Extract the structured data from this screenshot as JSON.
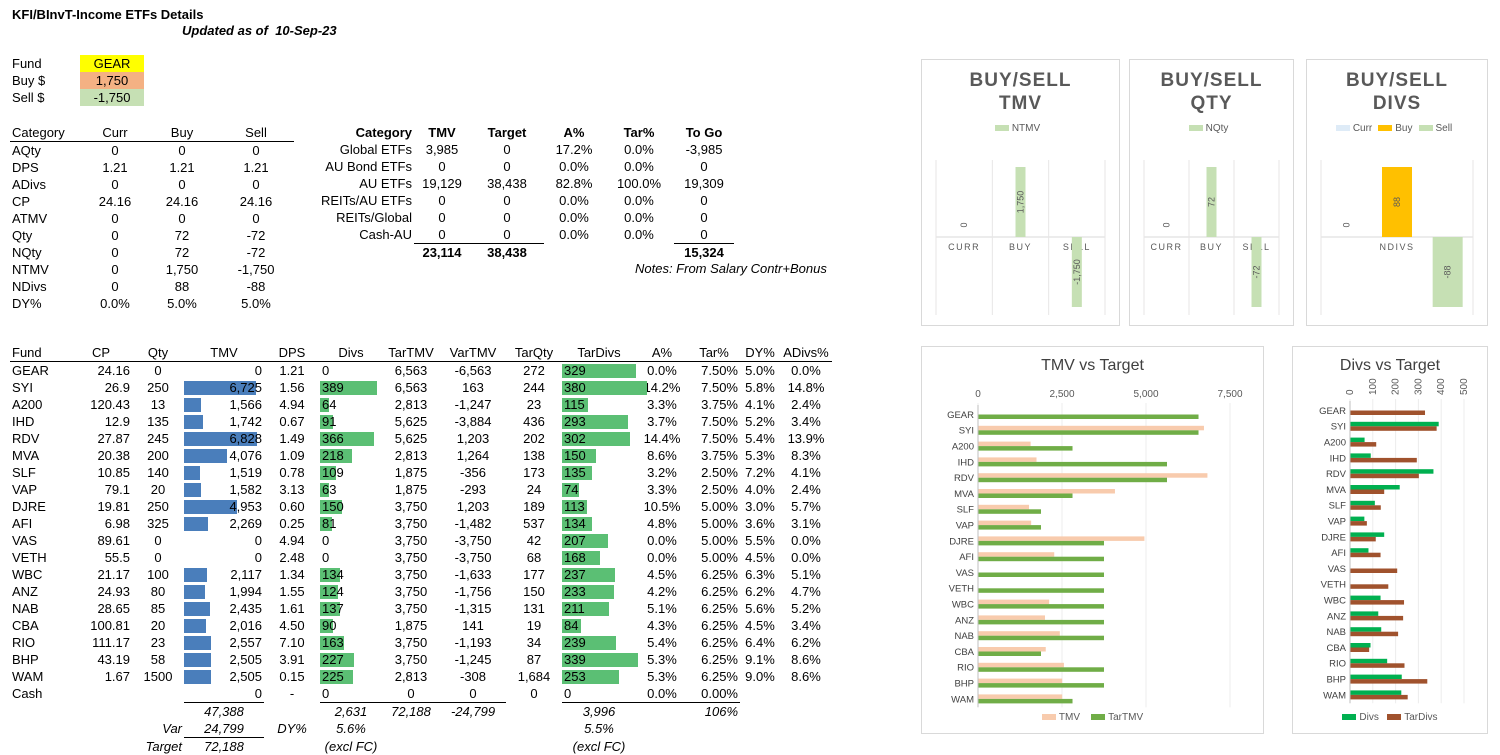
{
  "header": {
    "title": "KFI/BInvT-Income ETFs Details",
    "updated_label": "Updated as of",
    "updated_date": "10-Sep-23"
  },
  "inputs": [
    {
      "label": "Fund",
      "value": "GEAR",
      "color": "#ffff00"
    },
    {
      "label": "Buy $",
      "value": "1,750",
      "color": "#f4b183"
    },
    {
      "label": "Sell $",
      "value": "-1,750",
      "color": "#c6e0b4"
    }
  ],
  "calc": {
    "headers": [
      "Category",
      "Curr",
      "Buy",
      "Sell"
    ],
    "rows": [
      [
        "AQty",
        "0",
        "0",
        "0"
      ],
      [
        "DPS",
        "1.21",
        "1.21",
        "1.21"
      ],
      [
        "ADivs",
        "0",
        "0",
        "0"
      ],
      [
        "CP",
        "24.16",
        "24.16",
        "24.16"
      ],
      [
        "ATMV",
        "0",
        "0",
        "0"
      ],
      [
        "Qty",
        "0",
        "72",
        "-72"
      ],
      [
        "NQty",
        "0",
        "72",
        "-72"
      ],
      [
        "NTMV",
        "0",
        "1,750",
        "-1,750"
      ],
      [
        "NDivs",
        "0",
        "88",
        "-88"
      ],
      [
        "DY%",
        "0.0%",
        "5.0%",
        "5.0%"
      ]
    ]
  },
  "category": {
    "headers": [
      "Category",
      "TMV",
      "Target",
      "A%",
      "Tar%",
      "To Go"
    ],
    "rows": [
      [
        "Global ETFs",
        "3,985",
        "0",
        "17.2%",
        "0.0%",
        "-3,985"
      ],
      [
        "AU Bond ETFs",
        "0",
        "0",
        "0.0%",
        "0.0%",
        "0"
      ],
      [
        "AU ETFs",
        "19,129",
        "38,438",
        "82.8%",
        "100.0%",
        "19,309"
      ],
      [
        "REITs/AU ETFs",
        "0",
        "0",
        "0.0%",
        "0.0%",
        "0"
      ],
      [
        "REITs/Global",
        "0",
        "0",
        "0.0%",
        "0.0%",
        "0"
      ],
      [
        "Cash-AU",
        "0",
        "0",
        "0.0%",
        "0.0%",
        "0"
      ]
    ],
    "totals": {
      "tmv": "23,114",
      "target": "38,438",
      "togo": "15,324"
    },
    "notes": "Notes:  From Salary Contr+Bonus"
  },
  "funds": {
    "headers": [
      "Fund",
      "CP",
      "Qty",
      "TMV",
      "DPS",
      "Divs",
      "TarTMV",
      "VarTMV",
      "TarQty",
      "TarDivs",
      "A%",
      "Tar%",
      "DY%",
      "ADivs%"
    ],
    "rows": [
      [
        "GEAR",
        "24.16",
        "0",
        "0",
        "1.21",
        "0",
        "6,563",
        "-6,563",
        "272",
        "329",
        "0.0%",
        "7.50%",
        "5.0%",
        "0.0%"
      ],
      [
        "SYI",
        "26.9",
        "250",
        "6,725",
        "1.56",
        "389",
        "6,563",
        "163",
        "244",
        "380",
        "14.2%",
        "7.50%",
        "5.8%",
        "14.8%"
      ],
      [
        "A200",
        "120.43",
        "13",
        "1,566",
        "4.94",
        "64",
        "2,813",
        "-1,247",
        "23",
        "115",
        "3.3%",
        "3.75%",
        "4.1%",
        "2.4%"
      ],
      [
        "IHD",
        "12.9",
        "135",
        "1,742",
        "0.67",
        "91",
        "5,625",
        "-3,884",
        "436",
        "293",
        "3.7%",
        "7.50%",
        "5.2%",
        "3.4%"
      ],
      [
        "RDV",
        "27.87",
        "245",
        "6,828",
        "1.49",
        "366",
        "5,625",
        "1,203",
        "202",
        "302",
        "14.4%",
        "7.50%",
        "5.4%",
        "13.9%"
      ],
      [
        "MVA",
        "20.38",
        "200",
        "4,076",
        "1.09",
        "218",
        "2,813",
        "1,264",
        "138",
        "150",
        "8.6%",
        "3.75%",
        "5.3%",
        "8.3%"
      ],
      [
        "SLF",
        "10.85",
        "140",
        "1,519",
        "0.78",
        "109",
        "1,875",
        "-356",
        "173",
        "135",
        "3.2%",
        "2.50%",
        "7.2%",
        "4.1%"
      ],
      [
        "VAP",
        "79.1",
        "20",
        "1,582",
        "3.13",
        "63",
        "1,875",
        "-293",
        "24",
        "74",
        "3.3%",
        "2.50%",
        "4.0%",
        "2.4%"
      ],
      [
        "DJRE",
        "19.81",
        "250",
        "4,953",
        "0.60",
        "150",
        "3,750",
        "1,203",
        "189",
        "113",
        "10.5%",
        "5.00%",
        "3.0%",
        "5.7%"
      ],
      [
        "AFI",
        "6.98",
        "325",
        "2,269",
        "0.25",
        "81",
        "3,750",
        "-1,482",
        "537",
        "134",
        "4.8%",
        "5.00%",
        "3.6%",
        "3.1%"
      ],
      [
        "VAS",
        "89.61",
        "0",
        "0",
        "4.94",
        "0",
        "3,750",
        "-3,750",
        "42",
        "207",
        "0.0%",
        "5.00%",
        "5.5%",
        "0.0%"
      ],
      [
        "VETH",
        "55.5",
        "0",
        "0",
        "2.48",
        "0",
        "3,750",
        "-3,750",
        "68",
        "168",
        "0.0%",
        "5.00%",
        "4.5%",
        "0.0%"
      ],
      [
        "WBC",
        "21.17",
        "100",
        "2,117",
        "1.34",
        "134",
        "3,750",
        "-1,633",
        "177",
        "237",
        "4.5%",
        "6.25%",
        "6.3%",
        "5.1%"
      ],
      [
        "ANZ",
        "24.93",
        "80",
        "1,994",
        "1.55",
        "124",
        "3,750",
        "-1,756",
        "150",
        "233",
        "4.2%",
        "6.25%",
        "6.2%",
        "4.7%"
      ],
      [
        "NAB",
        "28.65",
        "85",
        "2,435",
        "1.61",
        "137",
        "3,750",
        "-1,315",
        "131",
        "211",
        "5.1%",
        "6.25%",
        "5.6%",
        "5.2%"
      ],
      [
        "CBA",
        "100.81",
        "20",
        "2,016",
        "4.50",
        "90",
        "1,875",
        "141",
        "19",
        "84",
        "4.3%",
        "6.25%",
        "4.5%",
        "3.4%"
      ],
      [
        "RIO",
        "111.17",
        "23",
        "2,557",
        "7.10",
        "163",
        "3,750",
        "-1,193",
        "34",
        "239",
        "5.4%",
        "6.25%",
        "6.4%",
        "6.2%"
      ],
      [
        "BHP",
        "43.19",
        "58",
        "2,505",
        "3.91",
        "227",
        "3,750",
        "-1,245",
        "87",
        "339",
        "5.3%",
        "6.25%",
        "9.1%",
        "8.6%"
      ],
      [
        "WAM",
        "1.67",
        "1500",
        "2,505",
        "0.15",
        "225",
        "2,813",
        "-308",
        "1,684",
        "253",
        "5.3%",
        "6.25%",
        "9.0%",
        "8.6%"
      ],
      [
        "Cash",
        "",
        "",
        "0",
        "-",
        "0",
        "0",
        "0",
        "0",
        "0",
        "0.0%",
        "0.00%",
        "",
        ""
      ]
    ],
    "totals": {
      "tmv": "47,388",
      "divs": "2,631",
      "tartmv": "72,188",
      "vartmv": "-24,799",
      "tardivs": "3,996",
      "tar_pct": "106%"
    },
    "var_label": "Var",
    "var_value": "24,799",
    "dy_label": "DY%",
    "dy_value": "5.6%",
    "target_label": "Target",
    "target_value": "72,188",
    "excl1": "(excl FC)",
    "tardy_value": "5.5%",
    "excl2": "(excl FC)"
  },
  "bs_charts": [
    {
      "title": [
        "BUY/SELL",
        "TMV"
      ],
      "legend": [
        {
          "name": "NTMV",
          "color": "#c6e0b4"
        }
      ],
      "categories": [
        "CURR",
        "BUY",
        "SELL"
      ],
      "values": [
        0,
        1750,
        -1750
      ],
      "labels": [
        "0",
        "1,750",
        "-1,750"
      ],
      "colors": [
        "#c6e0b4",
        "#c6e0b4",
        "#c6e0b4"
      ]
    },
    {
      "title": [
        "BUY/SELL",
        "QTY"
      ],
      "legend": [
        {
          "name": "NQty",
          "color": "#c6e0b4"
        }
      ],
      "categories": [
        "CURR",
        "BUY",
        "SELL"
      ],
      "values": [
        0,
        72,
        -72
      ],
      "labels": [
        "0",
        "72",
        "-72"
      ],
      "colors": [
        "#c6e0b4",
        "#c6e0b4",
        "#c6e0b4"
      ]
    },
    {
      "title": [
        "BUY/SELL",
        "DIVS"
      ],
      "legend": [
        {
          "name": "Curr",
          "color": "#deebf7"
        },
        {
          "name": "Buy",
          "color": "#ffc000"
        },
        {
          "name": "Sell",
          "color": "#c6e0b4"
        }
      ],
      "categories": [
        "NDIVS"
      ],
      "values": [
        0,
        88,
        -88
      ],
      "labels": [
        "0",
        "88",
        "-88"
      ],
      "colors": [
        "#deebf7",
        "#ffc000",
        "#c6e0b4"
      ]
    }
  ],
  "chart_data": [
    {
      "type": "bar",
      "title": "TMV vs Target",
      "categories": [
        "GEAR",
        "SYI",
        "A200",
        "IHD",
        "RDV",
        "MVA",
        "SLF",
        "VAP",
        "DJRE",
        "AFI",
        "VAS",
        "VETH",
        "WBC",
        "ANZ",
        "NAB",
        "CBA",
        "RIO",
        "BHP",
        "WAM"
      ],
      "series": [
        {
          "name": "TMV",
          "color": "#f8cbad",
          "values": [
            0,
            6725,
            1566,
            1742,
            6828,
            4076,
            1519,
            1582,
            4953,
            2269,
            0,
            0,
            2117,
            1994,
            2435,
            2016,
            2557,
            2505,
            2505
          ]
        },
        {
          "name": "TarTMV",
          "color": "#70ad47",
          "values": [
            6563,
            6563,
            2813,
            5625,
            5625,
            2813,
            1875,
            1875,
            3750,
            3750,
            3750,
            3750,
            3750,
            3750,
            3750,
            1875,
            3750,
            3750,
            2813
          ]
        }
      ],
      "xlim": [
        0,
        7500
      ],
      "ticks": [
        "0",
        "2,500",
        "5,000",
        "7,500"
      ],
      "tick_values": [
        0,
        2500,
        5000,
        7500
      ]
    },
    {
      "type": "bar",
      "title": "Divs vs Target",
      "categories": [
        "GEAR",
        "SYI",
        "A200",
        "IHD",
        "RDV",
        "MVA",
        "SLF",
        "VAP",
        "DJRE",
        "AFI",
        "VAS",
        "VETH",
        "WBC",
        "ANZ",
        "NAB",
        "CBA",
        "RIO",
        "BHP",
        "WAM"
      ],
      "series": [
        {
          "name": "Divs",
          "color": "#00b050",
          "values": [
            0,
            389,
            64,
            91,
            366,
            218,
            109,
            63,
            150,
            81,
            0,
            0,
            134,
            124,
            137,
            90,
            163,
            227,
            225
          ]
        },
        {
          "name": "TarDivs",
          "color": "#a0522d",
          "values": [
            329,
            380,
            115,
            293,
            302,
            150,
            135,
            74,
            113,
            134,
            207,
            168,
            237,
            233,
            211,
            84,
            239,
            339,
            253
          ]
        }
      ],
      "xlim": [
        0,
        500
      ],
      "ticks": [
        "0",
        "100",
        "200",
        "300",
        "400",
        "500"
      ],
      "tick_values": [
        0,
        100,
        200,
        300,
        400,
        500
      ]
    }
  ]
}
